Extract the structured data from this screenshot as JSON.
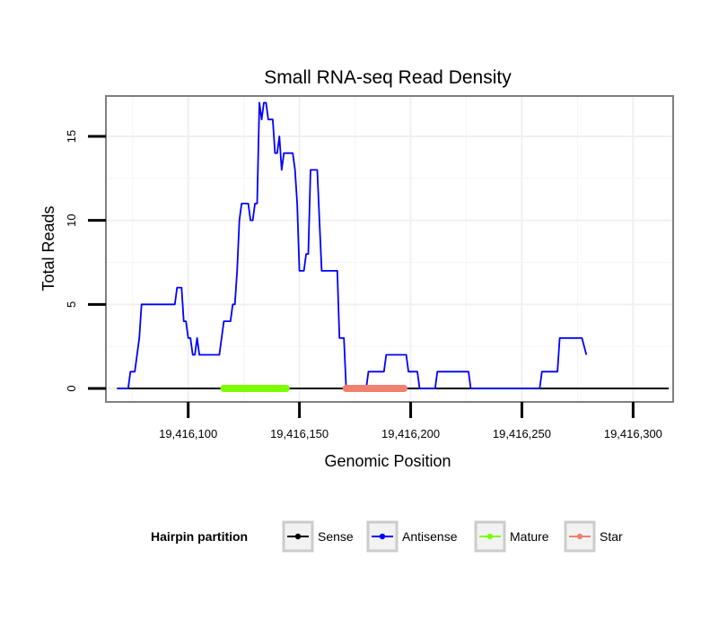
{
  "chart_data": {
    "type": "line",
    "title": "Small RNA-seq Read Density",
    "xlabel": "Genomic Position",
    "ylabel": "Total Reads",
    "xlim": [
      19416063,
      19416318
    ],
    "ylim": [
      -0.8,
      17.4
    ],
    "x_ticks": [
      19416100,
      19416150,
      19416200,
      19416250,
      19416300
    ],
    "x_tick_labels": [
      "19,416,100",
      "19,416,150",
      "19,416,200",
      "19,416,250",
      "19,416,300"
    ],
    "y_ticks": [
      0,
      5,
      10,
      15
    ],
    "y_tick_labels": [
      "0",
      "5",
      "10",
      "15"
    ],
    "grid": true,
    "legend": {
      "title": "Hairpin partition",
      "position": "bottom",
      "entries": [
        {
          "name": "Sense",
          "color": "#000000"
        },
        {
          "name": "Antisense",
          "color": "#0000ff"
        },
        {
          "name": "Mature",
          "color": "#7cfc00"
        },
        {
          "name": "Star",
          "color": "#f08070"
        }
      ]
    },
    "series": [
      {
        "name": "Sense",
        "color": "#000000",
        "points": [
          [
            19416068,
            0
          ],
          [
            19416316,
            0
          ]
        ]
      },
      {
        "name": "Antisense",
        "color": "#0000ff",
        "points": [
          [
            19416068,
            0
          ],
          [
            19416073,
            0
          ],
          [
            19416074,
            1
          ],
          [
            19416075,
            1
          ],
          [
            19416076,
            1
          ],
          [
            19416077,
            2
          ],
          [
            19416078,
            3
          ],
          [
            19416079,
            5
          ],
          [
            19416080,
            5
          ],
          [
            19416085,
            5
          ],
          [
            19416090,
            5
          ],
          [
            19416094,
            5
          ],
          [
            19416095,
            6
          ],
          [
            19416097,
            6
          ],
          [
            19416098,
            4
          ],
          [
            19416099,
            4
          ],
          [
            19416100,
            3
          ],
          [
            19416101,
            3
          ],
          [
            19416102,
            2
          ],
          [
            19416103,
            2
          ],
          [
            19416104,
            3
          ],
          [
            19416105,
            2
          ],
          [
            19416107,
            2
          ],
          [
            19416110,
            2
          ],
          [
            19416114,
            2
          ],
          [
            19416116,
            4
          ],
          [
            19416117,
            4
          ],
          [
            19416119,
            4
          ],
          [
            19416120,
            5
          ],
          [
            19416121,
            5
          ],
          [
            19416122,
            7
          ],
          [
            19416123,
            10
          ],
          [
            19416124,
            11
          ],
          [
            19416125,
            11
          ],
          [
            19416127,
            11
          ],
          [
            19416128,
            10
          ],
          [
            19416129,
            10
          ],
          [
            19416130,
            11
          ],
          [
            19416131,
            11
          ],
          [
            19416132,
            17
          ],
          [
            19416133,
            16
          ],
          [
            19416134,
            17
          ],
          [
            19416135,
            17
          ],
          [
            19416136,
            16
          ],
          [
            19416137,
            16
          ],
          [
            19416138,
            16
          ],
          [
            19416139,
            14
          ],
          [
            19416140,
            14
          ],
          [
            19416141,
            15
          ],
          [
            19416142,
            13
          ],
          [
            19416143,
            14
          ],
          [
            19416145,
            14
          ],
          [
            19416147,
            14
          ],
          [
            19416148,
            13
          ],
          [
            19416149,
            11
          ],
          [
            19416150,
            7
          ],
          [
            19416151,
            7
          ],
          [
            19416152,
            7
          ],
          [
            19416153,
            8
          ],
          [
            19416154,
            8
          ],
          [
            19416155,
            13
          ],
          [
            19416157,
            13
          ],
          [
            19416158,
            13
          ],
          [
            19416159,
            10
          ],
          [
            19416160,
            7
          ],
          [
            19416165,
            7
          ],
          [
            19416167,
            7
          ],
          [
            19416168,
            3
          ],
          [
            19416170,
            3
          ],
          [
            19416171,
            0
          ],
          [
            19416180,
            0
          ],
          [
            19416181,
            1
          ],
          [
            19416182,
            1
          ],
          [
            19416185,
            1
          ],
          [
            19416188,
            1
          ],
          [
            19416189,
            2
          ],
          [
            19416190,
            2
          ],
          [
            19416195,
            2
          ],
          [
            19416198,
            2
          ],
          [
            19416199,
            1
          ],
          [
            19416200,
            1
          ],
          [
            19416203,
            1
          ],
          [
            19416204,
            0
          ],
          [
            19416211,
            0
          ],
          [
            19416212,
            1
          ],
          [
            19416213,
            1
          ],
          [
            19416217,
            1
          ],
          [
            19416226,
            1
          ],
          [
            19416227,
            0
          ],
          [
            19416240,
            0
          ],
          [
            19416258,
            0
          ],
          [
            19416259,
            1
          ],
          [
            19416260,
            1
          ],
          [
            19416266,
            1
          ],
          [
            19416267,
            3
          ],
          [
            19416269,
            3
          ],
          [
            19416277,
            3
          ],
          [
            19416279,
            2
          ]
        ]
      },
      {
        "name": "Mature",
        "color": "#7cfc00",
        "points": [
          [
            19416116,
            0
          ],
          [
            19416144,
            0
          ]
        ]
      },
      {
        "name": "Star",
        "color": "#f08070",
        "points": [
          [
            19416171,
            0
          ],
          [
            19416197,
            0
          ]
        ]
      }
    ]
  }
}
